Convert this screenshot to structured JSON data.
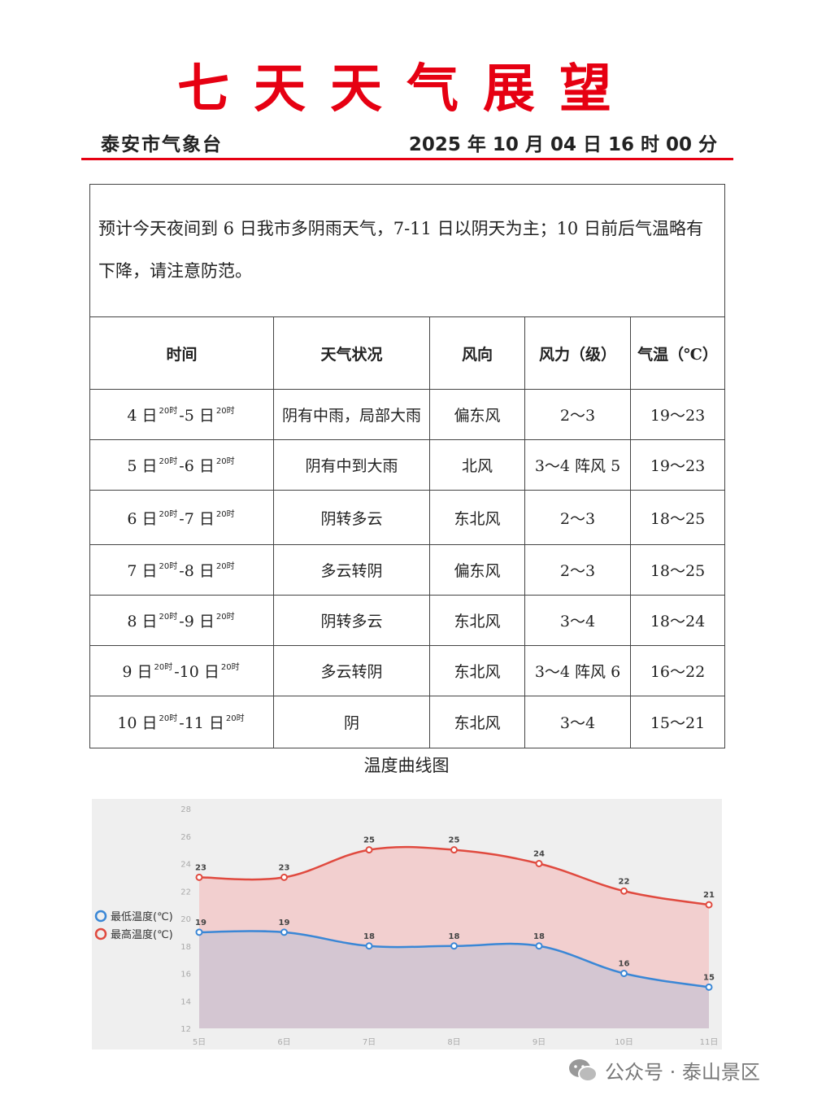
{
  "header": {
    "title": "七天天气展望",
    "org": "泰安市气象台",
    "datetime": "2025 年 10 月 04 日 16 时 00 分"
  },
  "summary": "预计今天夜间到 6 日我市多阴雨天气，7-11 日以阴天为主；10 日前后气温略有下降，请注意防范。",
  "table": {
    "headers": [
      "时间",
      "天气状况",
      "风向",
      "风力（级）",
      "气温（℃）"
    ],
    "time_sup": "20时",
    "rows": [
      {
        "from": "4 日",
        "to": "-5 日",
        "weather": "阴有中雨，局部大雨",
        "wind_dir": "偏东风",
        "wind_force": "2～3",
        "temp": "19～23"
      },
      {
        "from": "5 日",
        "to": "-6 日",
        "weather": "阴有中到大雨",
        "wind_dir": "北风",
        "wind_force": "3～4 阵风 5",
        "temp": "19～23"
      },
      {
        "from": "6 日",
        "to": "-7 日",
        "weather": "阴转多云",
        "wind_dir": "东北风",
        "wind_force": "2～3",
        "temp": "18～25"
      },
      {
        "from": "7 日",
        "to": "-8 日",
        "weather": "多云转阴",
        "wind_dir": "偏东风",
        "wind_force": "2～3",
        "temp": "18～25"
      },
      {
        "from": "8 日",
        "to": "-9 日",
        "weather": "阴转多云",
        "wind_dir": "东北风",
        "wind_force": "3～4",
        "temp": "18～24"
      },
      {
        "from": "9 日",
        "to": "-10 日",
        "weather": "多云转阴",
        "wind_dir": "东北风",
        "wind_force": "3～4 阵风 6",
        "temp": "16～22"
      },
      {
        "from": "10 日",
        "to": "-11 日",
        "weather": "阴",
        "wind_dir": "东北风",
        "wind_force": "3～4",
        "temp": "15～21"
      }
    ]
  },
  "chart_title": "温度曲线图",
  "chart_data": {
    "type": "area",
    "categories": [
      "5日",
      "6日",
      "7日",
      "8日",
      "9日",
      "10日",
      "11日"
    ],
    "series": [
      {
        "name": "最低温度(℃)",
        "values": [
          19,
          19,
          18,
          18,
          18,
          16,
          15
        ],
        "color": "#3a87d6"
      },
      {
        "name": "最高温度(℃)",
        "values": [
          23,
          23,
          25,
          25,
          24,
          22,
          21
        ],
        "color": "#e04a3f"
      }
    ],
    "yticks": [
      12,
      14,
      16,
      18,
      20,
      22,
      24,
      26,
      28
    ],
    "ylim": [
      12,
      28
    ],
    "legend": "left",
    "grid": false
  },
  "watermark": {
    "icon": "wechat-icon",
    "text": "公众号 · 泰山景区"
  }
}
